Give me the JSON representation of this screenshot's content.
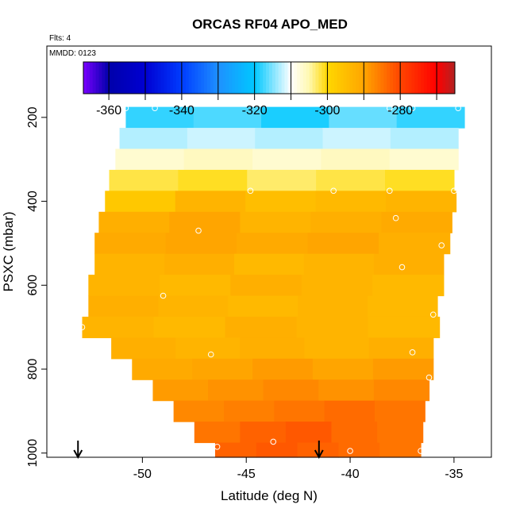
{
  "chart_data": {
    "type": "heatmap",
    "title": "ORCAS RF04 APO_MED",
    "flights_note": "Flts: 4",
    "mmdd_note": "MMDD: 0123",
    "xlabel": "Latitude (deg N)",
    "ylabel": "PSXC (mbar)",
    "xlim": [
      -54.6,
      -33.2
    ],
    "ylim": [
      1010,
      30
    ],
    "x_ticks": [
      -50,
      -45,
      -40,
      -35
    ],
    "x_tick_labels": [
      "-50",
      "-45",
      "-40",
      "-35"
    ],
    "y_ticks": [
      200,
      400,
      600,
      800,
      1000
    ],
    "y_tick_labels": [
      "200",
      "400",
      "600",
      "800",
      "1000"
    ],
    "colorbar": {
      "min": -367,
      "max": -265,
      "ticks": [
        -360,
        -340,
        -320,
        -300,
        -280
      ],
      "tick_labels": [
        "-360",
        "-340",
        "-320",
        "-300",
        "-280"
      ],
      "divisions": [
        -367,
        -360,
        -350,
        -340,
        -330,
        -320,
        -310,
        -300,
        -290,
        -280,
        -270,
        -265
      ],
      "colors": [
        "#7a00ff",
        "#0000c8",
        "#0000ff",
        "#1e90ff",
        "#00bfff",
        "#ffffff",
        "#fff8b0",
        "#ffcc00",
        "#ff8c00",
        "#ff0000",
        "#b22222"
      ]
    },
    "rows": [
      {
        "p_top": 175,
        "p_bot": 225,
        "lat_min": -50.8,
        "lat_max": -34.5,
        "values": [
          -318,
          -317,
          -319,
          -316,
          -318
        ]
      },
      {
        "p_top": 225,
        "p_bot": 275,
        "lat_min": -51.1,
        "lat_max": -34.8,
        "values": [
          -313,
          -312,
          -313,
          -312,
          -313
        ]
      },
      {
        "p_top": 275,
        "p_bot": 325,
        "lat_min": -51.3,
        "lat_max": -34.8,
        "values": [
          -307,
          -306,
          -307,
          -306,
          -307
        ]
      },
      {
        "p_top": 325,
        "p_bot": 375,
        "lat_min": -51.6,
        "lat_max": -35.0,
        "values": [
          -302,
          -301,
          -303,
          -302,
          -301
        ]
      },
      {
        "p_top": 375,
        "p_bot": 425,
        "lat_min": -51.8,
        "lat_max": -34.9,
        "values": [
          -297,
          -293,
          -295,
          -294,
          -293
        ]
      },
      {
        "p_top": 425,
        "p_bot": 475,
        "lat_min": -52.1,
        "lat_max": -35.1,
        "values": [
          -292,
          -290,
          -293,
          -292,
          -291
        ]
      },
      {
        "p_top": 475,
        "p_bot": 525,
        "lat_min": -52.3,
        "lat_max": -35.2,
        "values": [
          -291,
          -290,
          -291,
          -290,
          -292
        ]
      },
      {
        "p_top": 525,
        "p_bot": 575,
        "lat_min": -52.3,
        "lat_max": -35.5,
        "values": [
          -293,
          -292,
          -294,
          -293,
          -292
        ]
      },
      {
        "p_top": 575,
        "p_bot": 625,
        "lat_min": -52.6,
        "lat_max": -35.5,
        "values": [
          -293,
          -294,
          -292,
          -293,
          -294
        ]
      },
      {
        "p_top": 625,
        "p_bot": 675,
        "lat_min": -52.6,
        "lat_max": -35.8,
        "values": [
          -292,
          -293,
          -294,
          -293,
          -294
        ]
      },
      {
        "p_top": 675,
        "p_bot": 725,
        "lat_min": -52.9,
        "lat_max": -35.7,
        "values": [
          -293,
          -294,
          -292,
          -293,
          -294
        ]
      },
      {
        "p_top": 725,
        "p_bot": 775,
        "lat_min": -51.5,
        "lat_max": -36.0,
        "values": [
          -292,
          -293,
          -292,
          -293,
          -292
        ]
      },
      {
        "p_top": 775,
        "p_bot": 825,
        "lat_min": -50.5,
        "lat_max": -36.0,
        "values": [
          -291,
          -290,
          -289,
          -290,
          -289
        ]
      },
      {
        "p_top": 825,
        "p_bot": 875,
        "lat_min": -49.5,
        "lat_max": -36.2,
        "values": [
          -289,
          -288,
          -287,
          -288,
          -287
        ]
      },
      {
        "p_top": 875,
        "p_bot": 925,
        "lat_min": -48.5,
        "lat_max": -36.4,
        "values": [
          -287,
          -286,
          -285,
          -284,
          -285
        ]
      },
      {
        "p_top": 925,
        "p_bot": 975,
        "lat_min": -47.5,
        "lat_max": -36.5,
        "values": [
          -285,
          -283,
          -282,
          -284,
          -285
        ]
      },
      {
        "p_top": 975,
        "p_bot": 1010,
        "lat_min": -46.5,
        "lat_max": -36.6,
        "values": [
          -283,
          -282,
          -283,
          -284,
          -285
        ]
      }
    ],
    "points": [
      {
        "lat": -50.8,
        "p": 178
      },
      {
        "lat": -49.4,
        "p": 178
      },
      {
        "lat": -38.1,
        "p": 178
      },
      {
        "lat": -37.0,
        "p": 178
      },
      {
        "lat": -34.8,
        "p": 178
      },
      {
        "lat": -44.8,
        "p": 375
      },
      {
        "lat": -40.8,
        "p": 375
      },
      {
        "lat": -38.1,
        "p": 375
      },
      {
        "lat": -35.0,
        "p": 375
      },
      {
        "lat": -37.8,
        "p": 440
      },
      {
        "lat": -52.3,
        "p": 467
      },
      {
        "lat": -47.3,
        "p": 470
      },
      {
        "lat": -35.6,
        "p": 505
      },
      {
        "lat": -37.5,
        "p": 557
      },
      {
        "lat": -49.0,
        "p": 625
      },
      {
        "lat": -36.0,
        "p": 670
      },
      {
        "lat": -52.9,
        "p": 700
      },
      {
        "lat": -46.7,
        "p": 765
      },
      {
        "lat": -37.0,
        "p": 760
      },
      {
        "lat": -36.2,
        "p": 820
      },
      {
        "lat": -43.7,
        "p": 973
      },
      {
        "lat": -46.4,
        "p": 985
      },
      {
        "lat": -40.0,
        "p": 995
      },
      {
        "lat": -36.6,
        "p": 995
      }
    ],
    "arrows": [
      {
        "lat": -53.1
      },
      {
        "lat": -41.5
      }
    ]
  }
}
